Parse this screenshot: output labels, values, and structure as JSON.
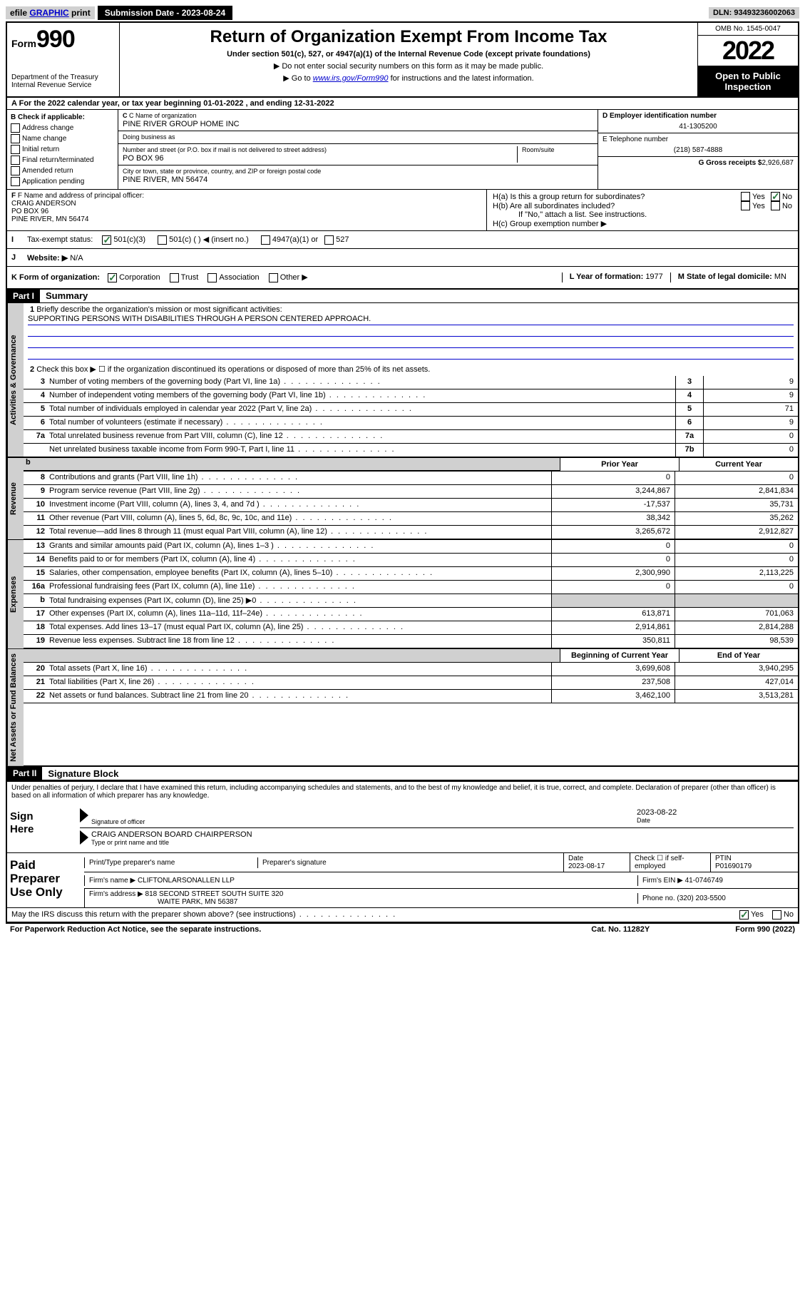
{
  "topbar": {
    "efile_prefix": "efile",
    "efile_link": "GRAPHIC",
    "print": "print",
    "submission_label": "Submission Date - 2023-08-24",
    "dln": "DLN: 93493236002063"
  },
  "header": {
    "form_word": "Form",
    "form_num": "990",
    "dept": "Department of the Treasury",
    "irs": "Internal Revenue Service",
    "title": "Return of Organization Exempt From Income Tax",
    "subtitle": "Under section 501(c), 527, or 4947(a)(1) of the Internal Revenue Code (except private foundations)",
    "warn": "▶ Do not enter social security numbers on this form as it may be made public.",
    "goto_prefix": "▶ Go to ",
    "goto_link": "www.irs.gov/Form990",
    "goto_suffix": " for instructions and the latest information.",
    "omb": "OMB No. 1545-0047",
    "year": "2022",
    "inspection": "Open to Public Inspection"
  },
  "period": {
    "line": "For the 2022 calendar year, or tax year beginning 01-01-2022    , and ending 12-31-2022"
  },
  "colB": {
    "label": "B Check if applicable:",
    "opts": [
      "Address change",
      "Name change",
      "Initial return",
      "Final return/terminated",
      "Amended return",
      "Application pending"
    ]
  },
  "colC": {
    "name_label": "C Name of organization",
    "name": "PINE RIVER GROUP HOME INC",
    "dba_label": "Doing business as",
    "dba": "",
    "addr_label": "Number and street (or P.O. box if mail is not delivered to street address)",
    "room_label": "Room/suite",
    "addr": "PO BOX 96",
    "city_label": "City or town, state or province, country, and ZIP or foreign postal code",
    "city": "PINE RIVER, MN  56474"
  },
  "colDE": {
    "d_label": "D Employer identification number",
    "d_val": "41-1305200",
    "e_label": "E Telephone number",
    "e_val": "(218) 587-4888",
    "g_label": "G Gross receipts $",
    "g_val": "2,926,687"
  },
  "sectionF": {
    "label": "F Name and address of principal officer:",
    "name": "CRAIG ANDERSON",
    "addr1": "PO BOX 96",
    "addr2": "PINE RIVER, MN  56474",
    "ha": "H(a)  Is this a group return for subordinates?",
    "hb": "H(b)  Are all subordinates included?",
    "hb_note": "If \"No,\" attach a list. See instructions.",
    "hc": "H(c)  Group exemption number ▶",
    "yes": "Yes",
    "no": "No"
  },
  "rowI": {
    "label": "Tax-exempt status:",
    "opt1": "501(c)(3)",
    "opt2": "501(c) (   ) ◀ (insert no.)",
    "opt3": "4947(a)(1) or",
    "opt4": "527"
  },
  "rowJ": {
    "label": "Website: ▶",
    "val": "N/A"
  },
  "rowK": {
    "label": "K Form of organization:",
    "opts": [
      "Corporation",
      "Trust",
      "Association",
      "Other ▶"
    ],
    "l_label": "L Year of formation:",
    "l_val": "1977",
    "m_label": "M State of legal domicile:",
    "m_val": "MN"
  },
  "part1": {
    "header": "Part I",
    "title": "Summary",
    "q1_label": "Briefly describe the organization's mission or most significant activities:",
    "q1_val": "SUPPORTING PERSONS WITH DISABILITIES THROUGH A PERSON CENTERED APPROACH.",
    "q2": "Check this box ▶ ☐  if the organization discontinued its operations or disposed of more than 25% of its net assets.",
    "tab_ag": "Activities & Governance",
    "tab_rev": "Revenue",
    "tab_exp": "Expenses",
    "tab_na": "Net Assets or Fund Balances",
    "rows_gov": [
      {
        "n": "3",
        "t": "Number of voting members of the governing body (Part VI, line 1a)",
        "c": "3",
        "v": "9"
      },
      {
        "n": "4",
        "t": "Number of independent voting members of the governing body (Part VI, line 1b)",
        "c": "4",
        "v": "9"
      },
      {
        "n": "5",
        "t": "Total number of individuals employed in calendar year 2022 (Part V, line 2a)",
        "c": "5",
        "v": "71"
      },
      {
        "n": "6",
        "t": "Total number of volunteers (estimate if necessary)",
        "c": "6",
        "v": "9"
      },
      {
        "n": "7a",
        "t": "Total unrelated business revenue from Part VIII, column (C), line 12",
        "c": "7a",
        "v": "0"
      },
      {
        "n": "",
        "t": "Net unrelated business taxable income from Form 990-T, Part I, line 11",
        "c": "7b",
        "v": "0"
      }
    ],
    "col_prior": "Prior Year",
    "col_current": "Current Year",
    "col_begin": "Beginning of Current Year",
    "col_end": "End of Year",
    "rows_rev": [
      {
        "n": "8",
        "t": "Contributions and grants (Part VIII, line 1h)",
        "v1": "0",
        "v2": "0"
      },
      {
        "n": "9",
        "t": "Program service revenue (Part VIII, line 2g)",
        "v1": "3,244,867",
        "v2": "2,841,834"
      },
      {
        "n": "10",
        "t": "Investment income (Part VIII, column (A), lines 3, 4, and 7d )",
        "v1": "-17,537",
        "v2": "35,731"
      },
      {
        "n": "11",
        "t": "Other revenue (Part VIII, column (A), lines 5, 6d, 8c, 9c, 10c, and 11e)",
        "v1": "38,342",
        "v2": "35,262"
      },
      {
        "n": "12",
        "t": "Total revenue—add lines 8 through 11 (must equal Part VIII, column (A), line 12)",
        "v1": "3,265,672",
        "v2": "2,912,827"
      }
    ],
    "rows_exp": [
      {
        "n": "13",
        "t": "Grants and similar amounts paid (Part IX, column (A), lines 1–3 )",
        "v1": "0",
        "v2": "0"
      },
      {
        "n": "14",
        "t": "Benefits paid to or for members (Part IX, column (A), line 4)",
        "v1": "0",
        "v2": "0"
      },
      {
        "n": "15",
        "t": "Salaries, other compensation, employee benefits (Part IX, column (A), lines 5–10)",
        "v1": "2,300,990",
        "v2": "2,113,225"
      },
      {
        "n": "16a",
        "t": "Professional fundraising fees (Part IX, column (A), line 11e)",
        "v1": "0",
        "v2": "0"
      },
      {
        "n": "b",
        "t": "Total fundraising expenses (Part IX, column (D), line 25) ▶0",
        "v1": "",
        "v2": "",
        "shaded": true
      },
      {
        "n": "17",
        "t": "Other expenses (Part IX, column (A), lines 11a–11d, 11f–24e)",
        "v1": "613,871",
        "v2": "701,063"
      },
      {
        "n": "18",
        "t": "Total expenses. Add lines 13–17 (must equal Part IX, column (A), line 25)",
        "v1": "2,914,861",
        "v2": "2,814,288"
      },
      {
        "n": "19",
        "t": "Revenue less expenses. Subtract line 18 from line 12",
        "v1": "350,811",
        "v2": "98,539"
      }
    ],
    "rows_na": [
      {
        "n": "20",
        "t": "Total assets (Part X, line 16)",
        "v1": "3,699,608",
        "v2": "3,940,295"
      },
      {
        "n": "21",
        "t": "Total liabilities (Part X, line 26)",
        "v1": "237,508",
        "v2": "427,014"
      },
      {
        "n": "22",
        "t": "Net assets or fund balances. Subtract line 21 from line 20",
        "v1": "3,462,100",
        "v2": "3,513,281"
      }
    ]
  },
  "part2": {
    "header": "Part II",
    "title": "Signature Block",
    "penalty": "Under penalties of perjury, I declare that I have examined this return, including accompanying schedules and statements, and to the best of my knowledge and belief, it is true, correct, and complete. Declaration of preparer (other than officer) is based on all information of which preparer has any knowledge.",
    "sign_here": "Sign Here",
    "sig_officer": "Signature of officer",
    "sig_date": "Date",
    "sig_date_val": "2023-08-22",
    "sig_name": "CRAIG ANDERSON  BOARD CHAIRPERSON",
    "sig_name_label": "Type or print name and title",
    "paid": "Paid Preparer Use Only",
    "prep_name_label": "Print/Type preparer's name",
    "prep_sig_label": "Preparer's signature",
    "prep_date_label": "Date",
    "prep_date": "2023-08-17",
    "check_label": "Check ☐ if self-employed",
    "ptin_label": "PTIN",
    "ptin": "P01690179",
    "firm_name_label": "Firm's name    ▶",
    "firm_name": "CLIFTONLARSONALLEN LLP",
    "firm_ein_label": "Firm's EIN ▶",
    "firm_ein": "41-0746749",
    "firm_addr_label": "Firm's address ▶",
    "firm_addr1": "818 SECOND STREET SOUTH SUITE 320",
    "firm_addr2": "WAITE PARK, MN  56387",
    "phone_label": "Phone no.",
    "phone": "(320) 203-5500",
    "discuss": "May the IRS discuss this return with the preparer shown above? (see instructions)",
    "paperwork": "For Paperwork Reduction Act Notice, see the separate instructions.",
    "catno": "Cat. No. 11282Y",
    "formfoot": "Form 990 (2022)"
  }
}
